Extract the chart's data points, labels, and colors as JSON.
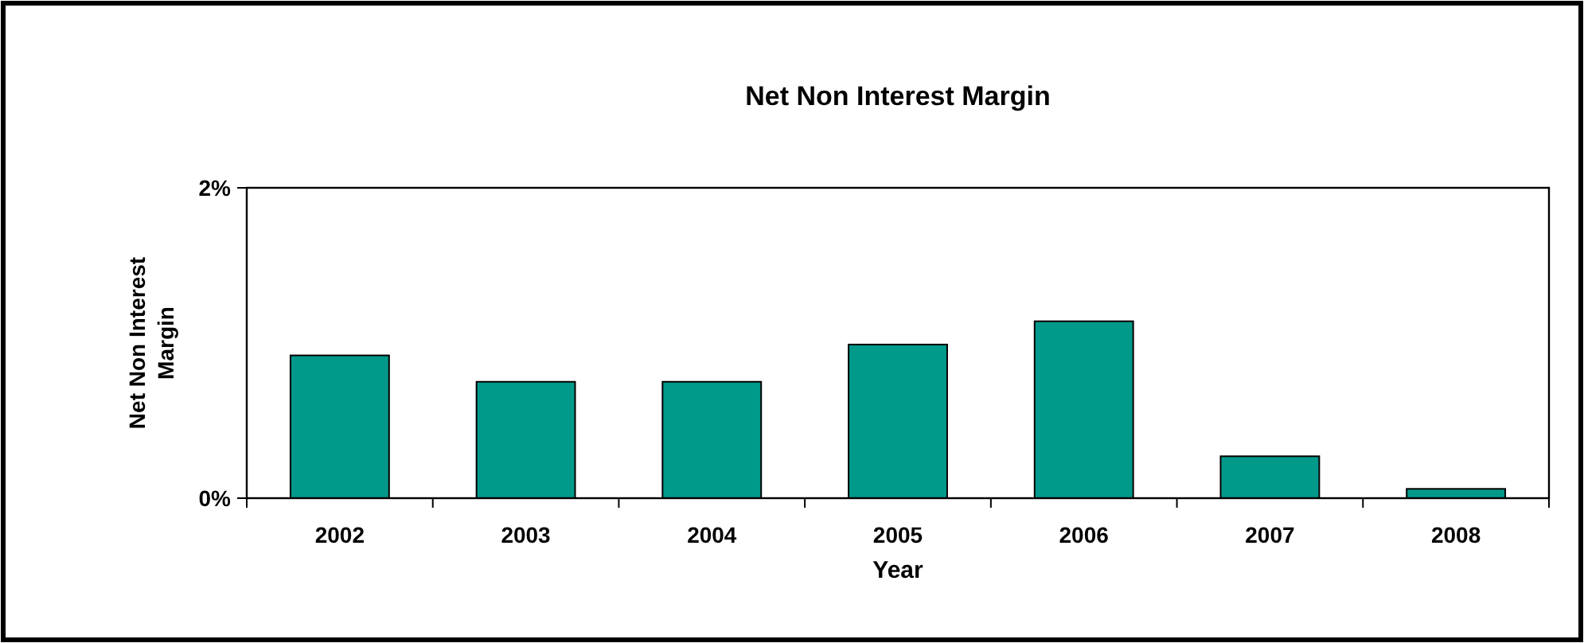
{
  "chart_data": {
    "type": "bar",
    "title": "Net Non Interest Margin",
    "xlabel": "Year",
    "ylabel": "Net Non Interest Margin",
    "categories": [
      "2002",
      "2003",
      "2004",
      "2005",
      "2006",
      "2007",
      "2008"
    ],
    "values": [
      0.92,
      0.75,
      0.75,
      0.99,
      1.14,
      0.27,
      0.06
    ],
    "color": "#00998a",
    "ylim": [
      0,
      2
    ],
    "yticks": [
      {
        "value": 0,
        "label": "0%"
      },
      {
        "value": 2,
        "label": "2%"
      }
    ]
  }
}
